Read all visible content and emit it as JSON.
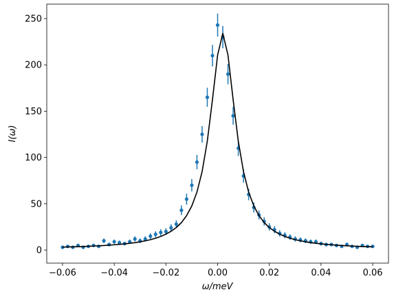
{
  "chart_data": {
    "type": "scatter",
    "x_label": "ω/meV",
    "y_label": "I(ω)",
    "xlim": [
      -0.0661,
      0.0661
    ],
    "ylim": [
      -14.1,
      265.6
    ],
    "xticks": [
      {
        "value": -0.06,
        "label": "−0.06"
      },
      {
        "value": -0.04,
        "label": "−0.04"
      },
      {
        "value": -0.02,
        "label": "−0.02"
      },
      {
        "value": 0,
        "label": "0.00"
      },
      {
        "value": 0.02,
        "label": "0.02"
      },
      {
        "value": 0.04,
        "label": "0.04"
      },
      {
        "value": 0.06,
        "label": "0.06"
      }
    ],
    "yticks": [
      0,
      50,
      100,
      150,
      200,
      250
    ],
    "grid": false,
    "x": [
      -0.06,
      -0.058,
      -0.056,
      -0.054,
      -0.052,
      -0.05,
      -0.048,
      -0.046,
      -0.044,
      -0.042,
      -0.04,
      -0.038,
      -0.036,
      -0.034,
      -0.032,
      -0.03,
      -0.028,
      -0.026,
      -0.024,
      -0.022,
      -0.02,
      -0.018,
      -0.016,
      -0.014,
      -0.012,
      -0.01,
      -0.008,
      -0.006,
      -0.004,
      -0.002,
      0,
      0.002,
      0.004,
      0.006,
      0.008,
      0.01,
      0.012,
      0.014,
      0.016,
      0.018,
      0.02,
      0.022,
      0.024,
      0.026,
      0.028,
      0.03,
      0.032,
      0.034,
      0.036,
      0.038,
      0.04,
      0.042,
      0.044,
      0.046,
      0.048,
      0.05,
      0.052,
      0.054,
      0.056,
      0.058,
      0.06
    ],
    "series": [
      {
        "type": "errorbar",
        "color": "#1f77b4",
        "values": [
          3,
          4,
          3,
          5,
          3,
          4,
          5,
          4,
          10,
          6,
          9,
          8,
          7,
          9,
          12,
          10,
          12,
          15,
          17,
          19,
          20,
          24,
          28,
          43,
          55,
          70,
          95,
          125,
          165,
          210,
          243,
          230,
          190,
          145,
          110,
          80,
          60,
          46,
          38,
          31,
          25,
          22,
          18,
          16,
          14,
          12,
          11,
          10,
          9,
          9,
          7,
          6,
          6,
          5,
          4,
          6,
          4,
          3,
          5,
          4,
          4
        ],
        "errors": [
          1.4,
          1.6,
          1.4,
          1.8,
          1.4,
          1.6,
          1.8,
          1.6,
          2.5,
          2,
          2.4,
          2.3,
          2.1,
          2.4,
          2.8,
          2.5,
          2.8,
          3.1,
          3.3,
          3.5,
          3.6,
          3.9,
          4.2,
          5.2,
          5.9,
          6.7,
          7.8,
          8.9,
          10.3,
          11.6,
          12.5,
          12.1,
          11,
          9.6,
          8.4,
          7.2,
          6.2,
          5.4,
          4.9,
          4.5,
          4,
          3.8,
          3.4,
          3.2,
          3,
          2.8,
          2.7,
          2.5,
          2.4,
          2.4,
          2.1,
          2,
          2,
          1.8,
          1.6,
          2,
          1.6,
          1.4,
          1.8,
          1.6,
          1.6
        ]
      },
      {
        "type": "line",
        "color": "#000000",
        "values": [
          3.2,
          3.3,
          3.5,
          3.6,
          3.8,
          4.1,
          4.3,
          4.6,
          4.9,
          5.3,
          5.7,
          6.1,
          6.7,
          7.3,
          8.0,
          8.9,
          10.0,
          11.2,
          12.8,
          14.7,
          17.2,
          20.3,
          24.3,
          29.7,
          37.2,
          47.6,
          62.6,
          84.8,
          117.5,
          162.3,
          210.7,
          234,
          210.7,
          162.3,
          117.5,
          84.8,
          62.6,
          47.6,
          37.2,
          29.7,
          24.3,
          20.3,
          17.2,
          14.7,
          12.8,
          11.2,
          10.0,
          8.9,
          8.0,
          7.3,
          6.7,
          6.1,
          5.7,
          5.3,
          4.9,
          4.6,
          4.3,
          4.1,
          3.8,
          3.6,
          3.5
        ]
      }
    ]
  }
}
